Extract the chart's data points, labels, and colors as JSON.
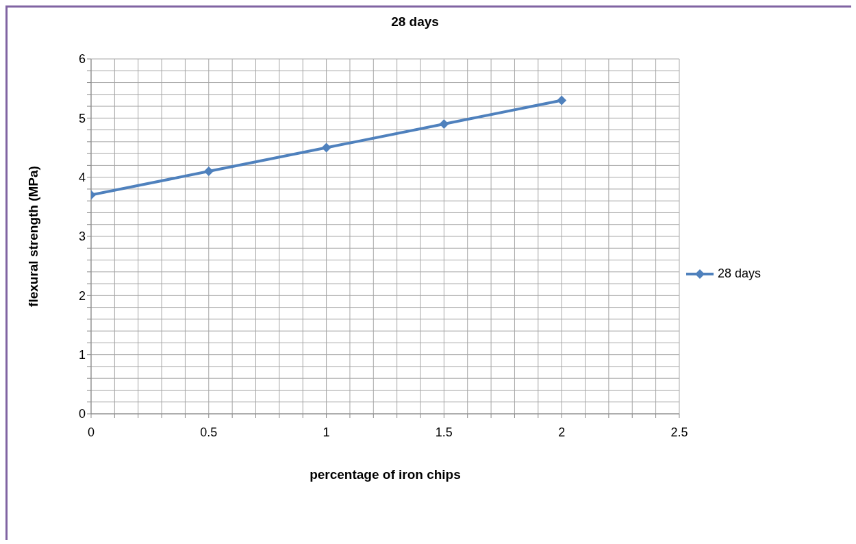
{
  "chart_data": {
    "type": "line",
    "title": "28 days",
    "xlabel": "percentage of iron chips",
    "ylabel": "flexural strength (MPa)",
    "x": [
      0,
      0.5,
      1,
      1.5,
      2
    ],
    "series": [
      {
        "name": "28 days",
        "color": "#4f81bd",
        "values": [
          3.7,
          4.1,
          4.5,
          4.9,
          5.3
        ]
      }
    ],
    "xlim": [
      0,
      2.5
    ],
    "xticks": [
      0,
      {
        "value": 0.1,
        "label": null
      },
      {
        "value": 0.2,
        "label": null
      },
      {
        "value": 0.3,
        "label": null
      },
      {
        "value": 0.4,
        "label": null
      },
      0.5,
      {
        "value": 0.6,
        "label": null
      },
      {
        "value": 0.7,
        "label": null
      },
      {
        "value": 0.8,
        "label": null
      },
      {
        "value": 0.9,
        "label": null
      },
      1,
      {
        "value": 1.1,
        "label": null
      },
      {
        "value": 1.2,
        "label": null
      },
      {
        "value": 1.3,
        "label": null
      },
      {
        "value": 1.4,
        "label": null
      },
      1.5,
      {
        "value": 1.6,
        "label": null
      },
      {
        "value": 1.7,
        "label": null
      },
      {
        "value": 1.8,
        "label": null
      },
      {
        "value": 1.9,
        "label": null
      },
      2,
      {
        "value": 2.1,
        "label": null
      },
      {
        "value": 2.2,
        "label": null
      },
      {
        "value": 2.3,
        "label": null
      },
      {
        "value": 2.4,
        "label": null
      },
      2.5
    ],
    "ylim": [
      0,
      6
    ],
    "yticks": [
      0,
      {
        "value": 0.2,
        "label": null
      },
      {
        "value": 0.4,
        "label": null
      },
      {
        "value": 0.6,
        "label": null
      },
      {
        "value": 0.8,
        "label": null
      },
      1,
      {
        "value": 1.2,
        "label": null
      },
      {
        "value": 1.4,
        "label": null
      },
      {
        "value": 1.6,
        "label": null
      },
      {
        "value": 1.8,
        "label": null
      },
      2,
      {
        "value": 2.2,
        "label": null
      },
      {
        "value": 2.4,
        "label": null
      },
      {
        "value": 2.6,
        "label": null
      },
      {
        "value": 2.8,
        "label": null
      },
      3,
      {
        "value": 3.2,
        "label": null
      },
      {
        "value": 3.4,
        "label": null
      },
      {
        "value": 3.6,
        "label": null
      },
      {
        "value": 3.8,
        "label": null
      },
      4,
      {
        "value": 4.2,
        "label": null
      },
      {
        "value": 4.4,
        "label": null
      },
      {
        "value": 4.6,
        "label": null
      },
      {
        "value": 4.8,
        "label": null
      },
      5,
      {
        "value": 5.2,
        "label": null
      },
      {
        "value": 5.4,
        "label": null
      },
      {
        "value": 5.6,
        "label": null
      },
      {
        "value": 5.8,
        "label": null
      },
      6
    ],
    "grid": true,
    "legend": "right",
    "marker": "diamond",
    "line_style": "solid"
  }
}
